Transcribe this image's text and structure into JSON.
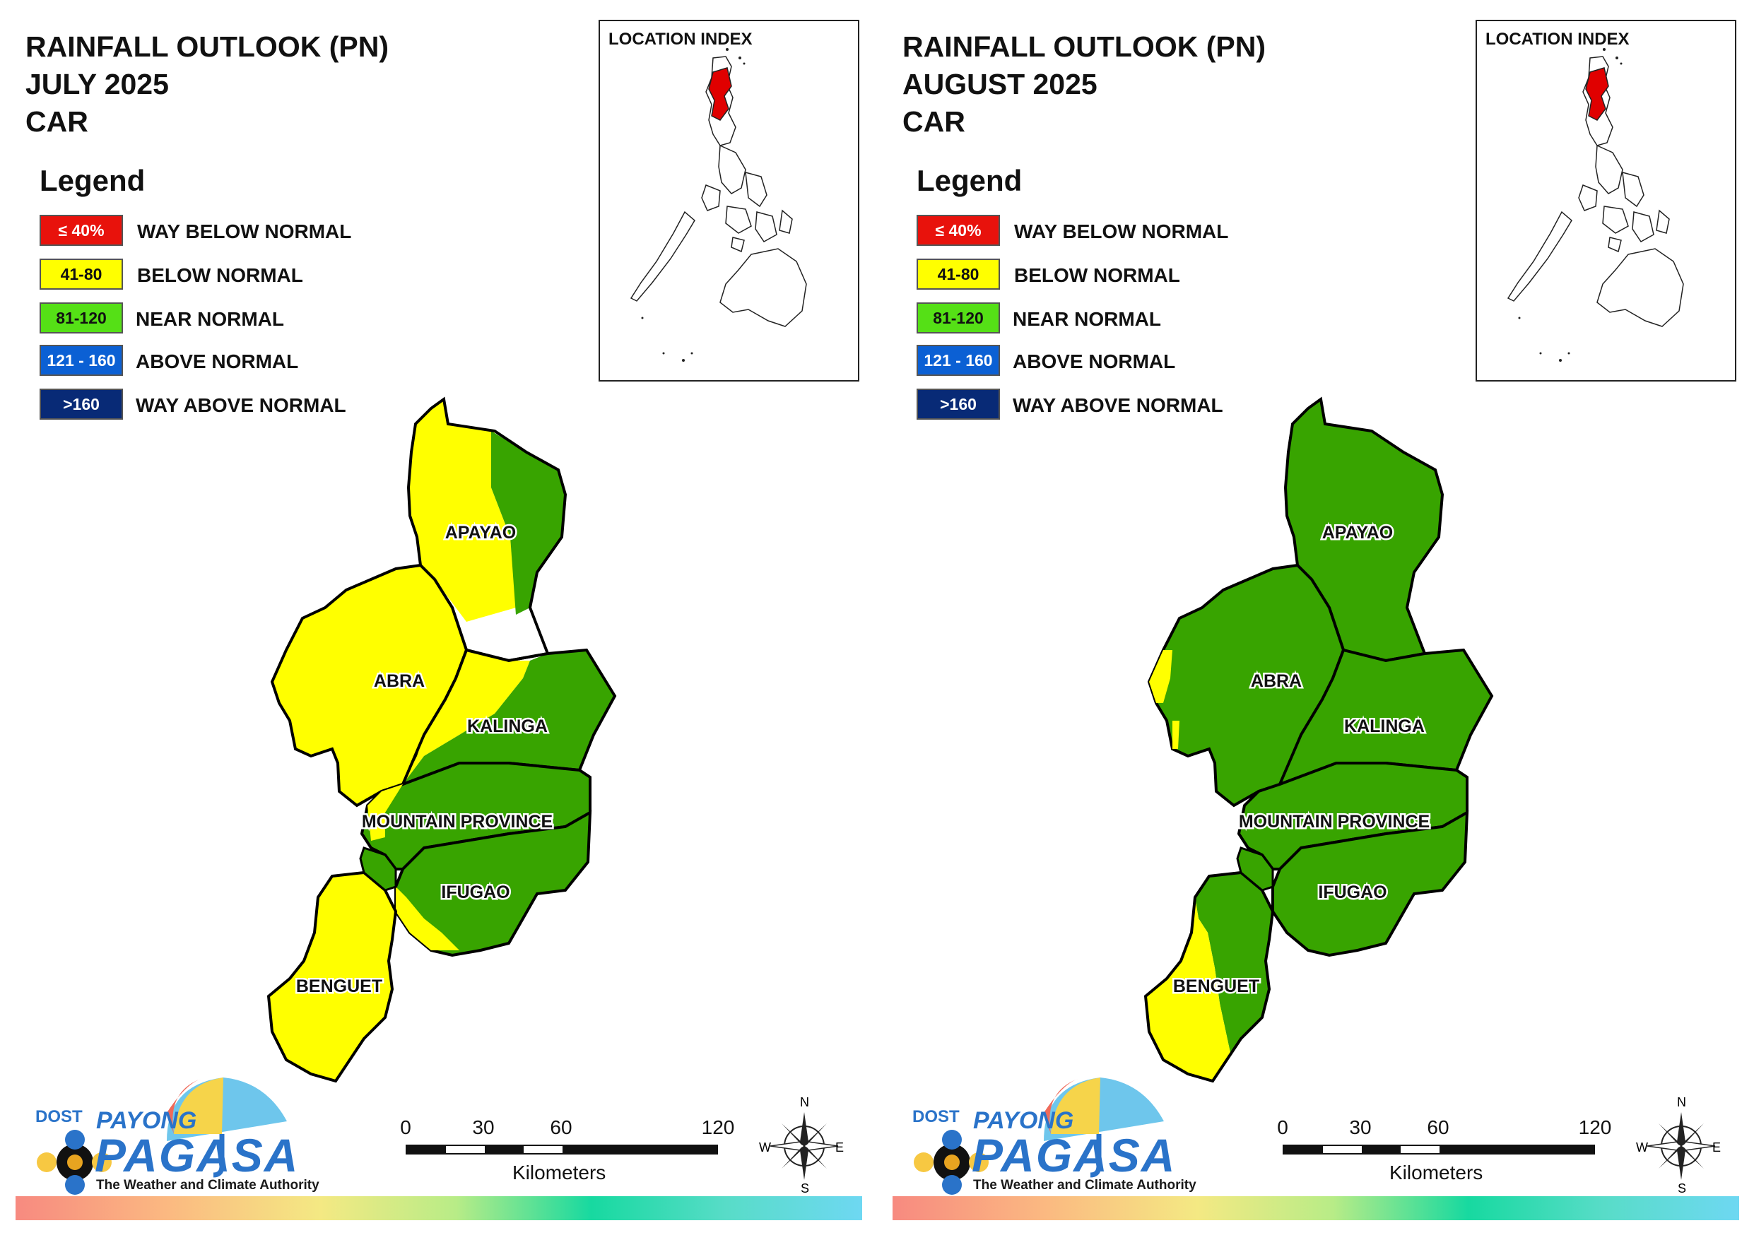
{
  "legend": {
    "title": "Legend",
    "items": [
      {
        "swatch_text": "≤ 40%",
        "label": "WAY BELOW NORMAL",
        "color": "#e8120c",
        "text_color": "#ffffff"
      },
      {
        "swatch_text": "41-80",
        "label": "BELOW NORMAL",
        "color": "#ffff00",
        "text_color": "#111111"
      },
      {
        "swatch_text": "81-120",
        "label": "NEAR NORMAL",
        "color": "#55e016",
        "text_color": "#111111"
      },
      {
        "swatch_text": "121 - 160",
        "label": "ABOVE NORMAL",
        "color": "#0b60d4",
        "text_color": "#ffffff"
      },
      {
        "swatch_text": ">160",
        "label": "WAY ABOVE NORMAL",
        "color": "#082a76",
        "text_color": "#ffffff"
      }
    ]
  },
  "location_index": {
    "title": "LOCATION INDEX"
  },
  "provinces": [
    "APAYAO",
    "ABRA",
    "KALINGA",
    "MOUNTAIN PROVINCE",
    "IFUGAO",
    "BENGUET"
  ],
  "map_colors": {
    "below_normal": "#ffff00",
    "near_normal": "#38a400",
    "highlight": "#e00000"
  },
  "panels": [
    {
      "title_lines": [
        "RAINFALL OUTLOOK (PN)",
        "JULY 2025",
        "CAR"
      ],
      "month": "July 2025",
      "province_categories": {
        "APAYAO": "below normal (west) / near normal (east)",
        "ABRA": "below normal",
        "KALINGA": "below normal (west) / near normal (east)",
        "MOUNTAIN PROVINCE": "near normal (mostly)",
        "IFUGAO": "near normal (mostly)",
        "BENGUET": "below normal"
      }
    },
    {
      "title_lines": [
        "RAINFALL OUTLOOK (PN)",
        "AUGUST 2025",
        "CAR"
      ],
      "month": "August 2025",
      "province_categories": {
        "APAYAO": "near normal",
        "ABRA": "near normal",
        "KALINGA": "near normal",
        "MOUNTAIN PROVINCE": "near normal",
        "IFUGAO": "near normal",
        "BENGUET": "below normal (west) / near normal (east)"
      }
    }
  ],
  "scale_bar": {
    "ticks": [
      "0",
      "30",
      "60",
      "120"
    ],
    "unit": "Kilometers"
  },
  "compass": {
    "n": "N",
    "e": "E",
    "s": "S",
    "w": "W"
  },
  "branding": {
    "agency": "DOST",
    "name_top": "PAYONG",
    "name_main": "PAGASA",
    "tagline": "The Weather and Climate Authority"
  }
}
